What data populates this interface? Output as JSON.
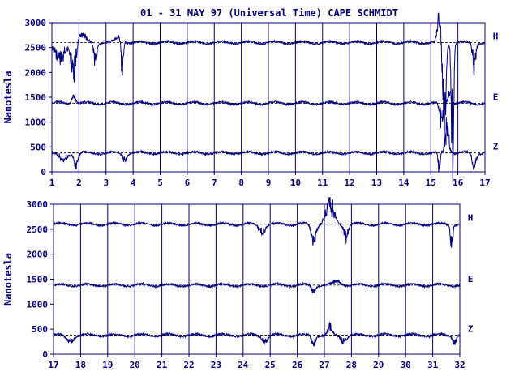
{
  "chart_data": [
    {
      "type": "line",
      "title": "01 - 31 MAY 97 (Universal Time) CAPE SCHMIDT",
      "ylabel": "Nanotesla",
      "ylim": [
        0,
        3000
      ],
      "yticks": [
        "0",
        "500",
        "1000",
        "1500",
        "2000",
        "2500",
        "3000"
      ],
      "xlim": [
        1,
        17
      ],
      "xticks": [
        "1",
        "2",
        "3",
        "4",
        "5",
        "6",
        "7",
        "8",
        "9",
        "10",
        "11",
        "12",
        "13",
        "14",
        "15",
        "16",
        "17"
      ],
      "grid": "vertical day lines",
      "series": [
        {
          "name": "H",
          "baseline": 2600,
          "color": "#000080",
          "disturbances": [
            {
              "day": 1.3,
              "amp": -350,
              "width": 0.25
            },
            {
              "day": 1.8,
              "amp": -600,
              "width": 0.12
            },
            {
              "day": 2.1,
              "amp": 150,
              "width": 0.2
            },
            {
              "day": 2.6,
              "amp": -300,
              "width": 0.08
            },
            {
              "day": 3.5,
              "amp": 100,
              "width": 0.2
            },
            {
              "day": 3.6,
              "amp": -700,
              "width": 0.05
            },
            {
              "day": 15.3,
              "amp": 500,
              "width": 0.08
            },
            {
              "day": 15.5,
              "amp": -1500,
              "width": 0.08
            },
            {
              "day": 15.8,
              "amp": -2200,
              "width": 0.06
            },
            {
              "day": 16.6,
              "amp": -500,
              "width": 0.08
            }
          ]
        },
        {
          "name": "E",
          "baseline": 1380,
          "color": "#000080",
          "disturbances": [
            {
              "day": 1.8,
              "amp": 150,
              "width": 0.1
            },
            {
              "day": 15.4,
              "amp": -350,
              "width": 0.1
            },
            {
              "day": 15.7,
              "amp": 200,
              "width": 0.1
            }
          ]
        },
        {
          "name": "Z",
          "baseline": 380,
          "color": "#000080",
          "disturbances": [
            {
              "day": 1.4,
              "amp": -150,
              "width": 0.2
            },
            {
              "day": 1.9,
              "amp": -250,
              "width": 0.1
            },
            {
              "day": 3.7,
              "amp": -150,
              "width": 0.1
            },
            {
              "day": 15.6,
              "amp": 500,
              "width": 0.1
            },
            {
              "day": 15.3,
              "amp": -350,
              "width": 0.05
            },
            {
              "day": 16.6,
              "amp": -250,
              "width": 0.1
            }
          ]
        }
      ]
    },
    {
      "type": "line",
      "ylabel": "Nanotesla",
      "ylim": [
        0,
        3000
      ],
      "yticks": [
        "0",
        "500",
        "1000",
        "1500",
        "2000",
        "2500",
        "3000"
      ],
      "xlim": [
        17,
        32
      ],
      "xticks": [
        "17",
        "18",
        "19",
        "20",
        "21",
        "22",
        "23",
        "24",
        "25",
        "26",
        "27",
        "28",
        "29",
        "30",
        "31",
        "32"
      ],
      "grid": "vertical day lines",
      "series": [
        {
          "name": "H",
          "baseline": 2600,
          "color": "#000080",
          "disturbances": [
            {
              "day": 24.7,
              "amp": -150,
              "width": 0.15
            },
            {
              "day": 26.6,
              "amp": -300,
              "width": 0.12
            },
            {
              "day": 27.2,
              "amp": 400,
              "width": 0.2
            },
            {
              "day": 27.8,
              "amp": -250,
              "width": 0.1
            },
            {
              "day": 31.7,
              "amp": -350,
              "width": 0.06
            }
          ]
        },
        {
          "name": "E",
          "baseline": 1380,
          "color": "#000080",
          "disturbances": [
            {
              "day": 26.6,
              "amp": -100,
              "width": 0.1
            },
            {
              "day": 27.5,
              "amp": 80,
              "width": 0.2
            }
          ]
        },
        {
          "name": "Z",
          "baseline": 380,
          "color": "#000080",
          "disturbances": [
            {
              "day": 17.6,
              "amp": -100,
              "width": 0.2
            },
            {
              "day": 24.8,
              "amp": -120,
              "width": 0.15
            },
            {
              "day": 26.6,
              "amp": -150,
              "width": 0.1
            },
            {
              "day": 27.2,
              "amp": 150,
              "width": 0.1
            },
            {
              "day": 27.7,
              "amp": -100,
              "width": 0.15
            },
            {
              "day": 31.8,
              "amp": -150,
              "width": 0.08
            }
          ]
        }
      ]
    }
  ],
  "colors": {
    "trace": "#000080",
    "axis": "#000080",
    "background": "#ffffff"
  }
}
